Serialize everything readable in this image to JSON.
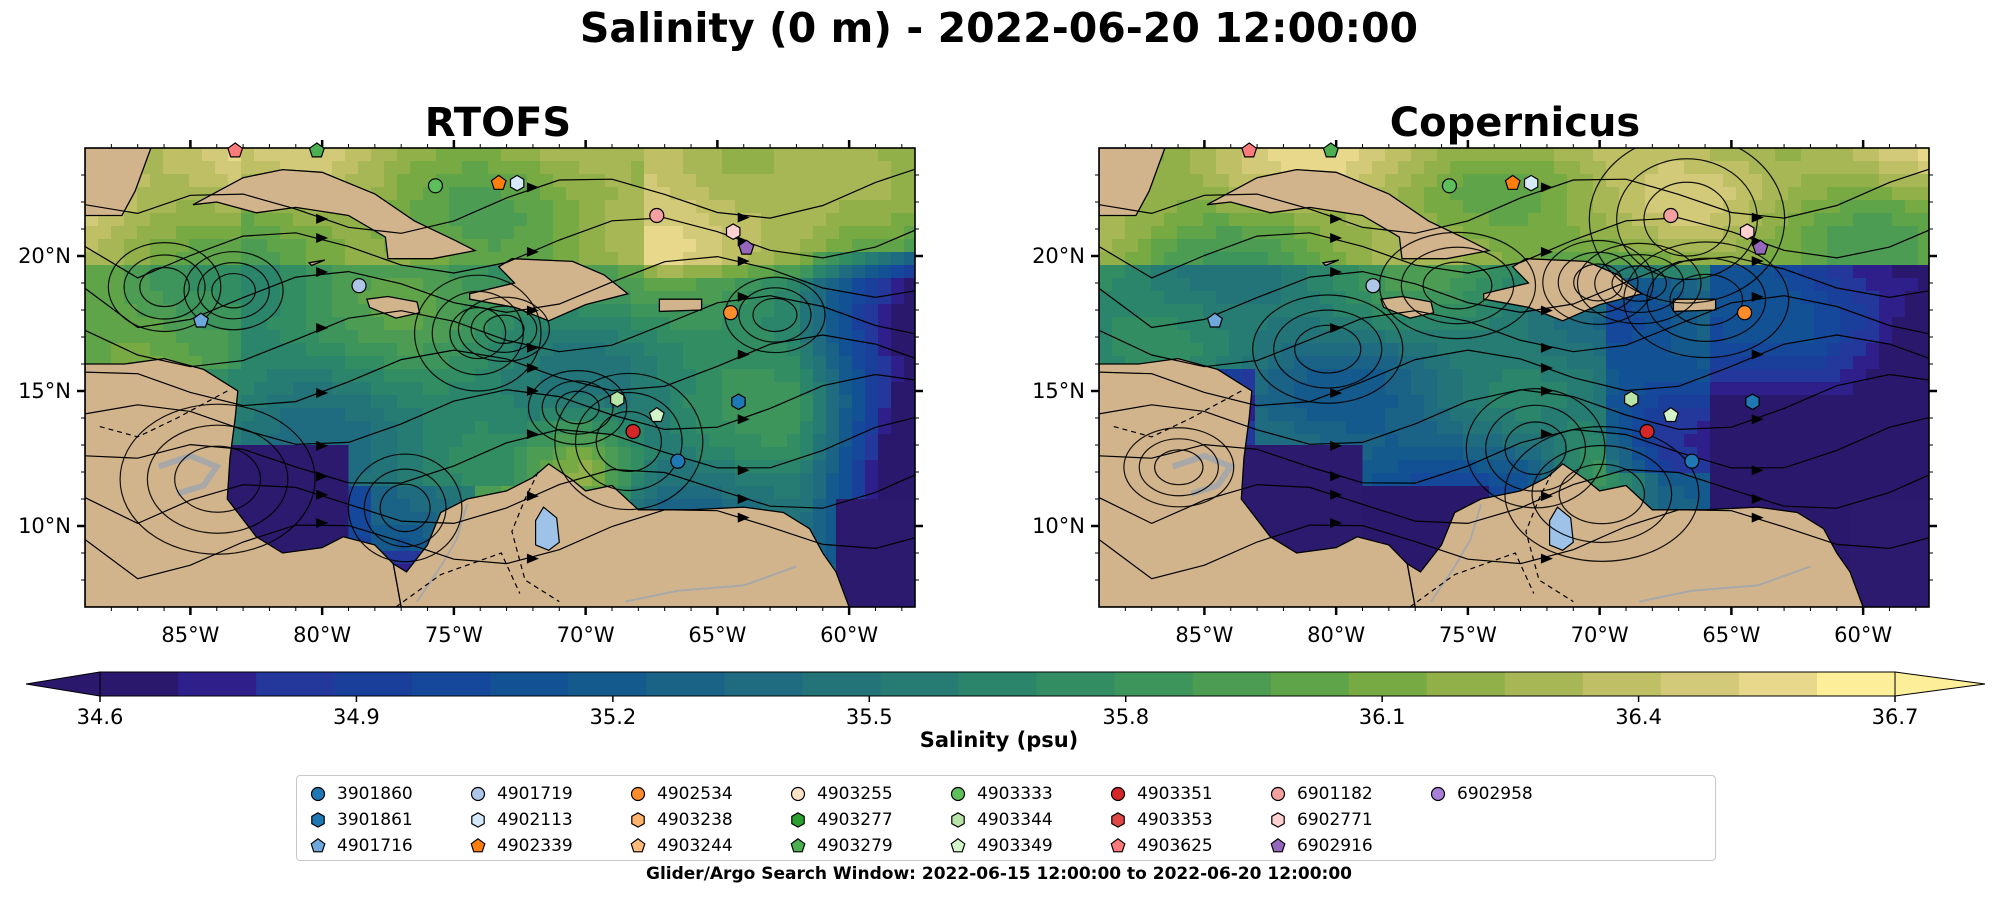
{
  "title": "Salinity (0 m) - 2022-06-20 12:00:00",
  "footer": "Glider/Argo Search Window: 2022-06-15 12:00:00 to 2022-06-20 12:00:00",
  "chart_data": [
    {
      "type": "heatmap",
      "title": "RTOFS",
      "variable": "Salinity (psu)",
      "lon_range": [
        -89.0,
        -57.5
      ],
      "lat_range": [
        7.0,
        24.0
      ],
      "x_ticks": [
        "85°W",
        "80°W",
        "75°W",
        "70°W",
        "65°W",
        "60°W"
      ],
      "y_ticks": [
        "10°N",
        "15°N",
        "20°N"
      ],
      "overlays": [
        "surface current streamlines",
        "bathymetry contours",
        "glider/argo locations"
      ],
      "grid": false
    },
    {
      "type": "heatmap",
      "title": "Copernicus",
      "variable": "Salinity (psu)",
      "lon_range": [
        -89.0,
        -57.5
      ],
      "lat_range": [
        7.0,
        24.0
      ],
      "x_ticks": [
        "85°W",
        "80°W",
        "75°W",
        "70°W",
        "65°W",
        "60°W"
      ],
      "y_ticks": [
        "10°N",
        "15°N",
        "20°N"
      ],
      "overlays": [
        "surface current streamlines",
        "bathymetry contours",
        "glider/argo locations"
      ],
      "grid": false
    }
  ],
  "colorbar": {
    "label": "Salinity (psu)",
    "min": 34.6,
    "max": 36.7,
    "ticks": [
      "34.6",
      "34.9",
      "35.2",
      "35.5",
      "35.8",
      "36.1",
      "36.4",
      "36.7"
    ],
    "colormap": "haline",
    "extend": "both"
  },
  "legend": [
    {
      "id": "3901860",
      "marker": "circle",
      "color": "#1f77b4"
    },
    {
      "id": "3901861",
      "marker": "hexagon",
      "color": "#1f77b4"
    },
    {
      "id": "4901716",
      "marker": "pentagon",
      "color": "#6fa8dc"
    },
    {
      "id": "4901719",
      "marker": "circle",
      "color": "#aec7e8"
    },
    {
      "id": "4902113",
      "marker": "hexagon",
      "color": "#d6e9f8"
    },
    {
      "id": "4902339",
      "marker": "pentagon",
      "color": "#ff7f0e"
    },
    {
      "id": "4902534",
      "marker": "circle",
      "color": "#ff8c2a"
    },
    {
      "id": "4903238",
      "marker": "hexagon",
      "color": "#ffb36b"
    },
    {
      "id": "4903244",
      "marker": "pentagon",
      "color": "#ffbb78"
    },
    {
      "id": "4903255",
      "marker": "circle",
      "color": "#fde3c4"
    },
    {
      "id": "4903277",
      "marker": "hexagon",
      "color": "#2ca02c"
    },
    {
      "id": "4903279",
      "marker": "pentagon",
      "color": "#4caf50"
    },
    {
      "id": "4903333",
      "marker": "circle",
      "color": "#5cbf5c"
    },
    {
      "id": "4903344",
      "marker": "hexagon",
      "color": "#b7e4a7"
    },
    {
      "id": "4903349",
      "marker": "pentagon",
      "color": "#d4f5c9"
    },
    {
      "id": "4903351",
      "marker": "circle",
      "color": "#d62728"
    },
    {
      "id": "4903353",
      "marker": "hexagon",
      "color": "#e04848"
    },
    {
      "id": "4903625",
      "marker": "pentagon",
      "color": "#ff7b7b"
    },
    {
      "id": "6901182",
      "marker": "circle",
      "color": "#f4a0a0"
    },
    {
      "id": "6902771",
      "marker": "hexagon",
      "color": "#ffd0d0"
    },
    {
      "id": "6902916",
      "marker": "pentagon",
      "color": "#9467bd"
    },
    {
      "id": "6902958",
      "marker": "circle",
      "color": "#a77fd6"
    }
  ],
  "floats": [
    {
      "id": "4901719",
      "lon": -78.6,
      "lat": 18.9
    },
    {
      "id": "4901716",
      "lon": -84.6,
      "lat": 17.6
    },
    {
      "id": "4903333",
      "lon": -75.7,
      "lat": 22.6
    },
    {
      "id": "4902339",
      "lon": -73.3,
      "lat": 22.7
    },
    {
      "id": "4902113",
      "lon": -72.6,
      "lat": 22.7
    },
    {
      "id": "6901182",
      "lon": -67.3,
      "lat": 21.5
    },
    {
      "id": "6902771",
      "lon": -64.4,
      "lat": 20.9
    },
    {
      "id": "6902916",
      "lon": -63.9,
      "lat": 20.3
    },
    {
      "id": "4902534",
      "lon": -64.5,
      "lat": 17.9
    },
    {
      "id": "4903344",
      "lon": -68.8,
      "lat": 14.7
    },
    {
      "id": "4903349",
      "lon": -67.3,
      "lat": 14.1
    },
    {
      "id": "4903351",
      "lon": -68.2,
      "lat": 13.5
    },
    {
      "id": "3901861",
      "lon": -64.2,
      "lat": 14.6
    },
    {
      "id": "3901860",
      "lon": -66.5,
      "lat": 12.4
    },
    {
      "id": "4903625",
      "lon": -83.3,
      "lat": 23.9
    },
    {
      "id": "4903279",
      "lon": -80.2,
      "lat": 23.9
    }
  ]
}
